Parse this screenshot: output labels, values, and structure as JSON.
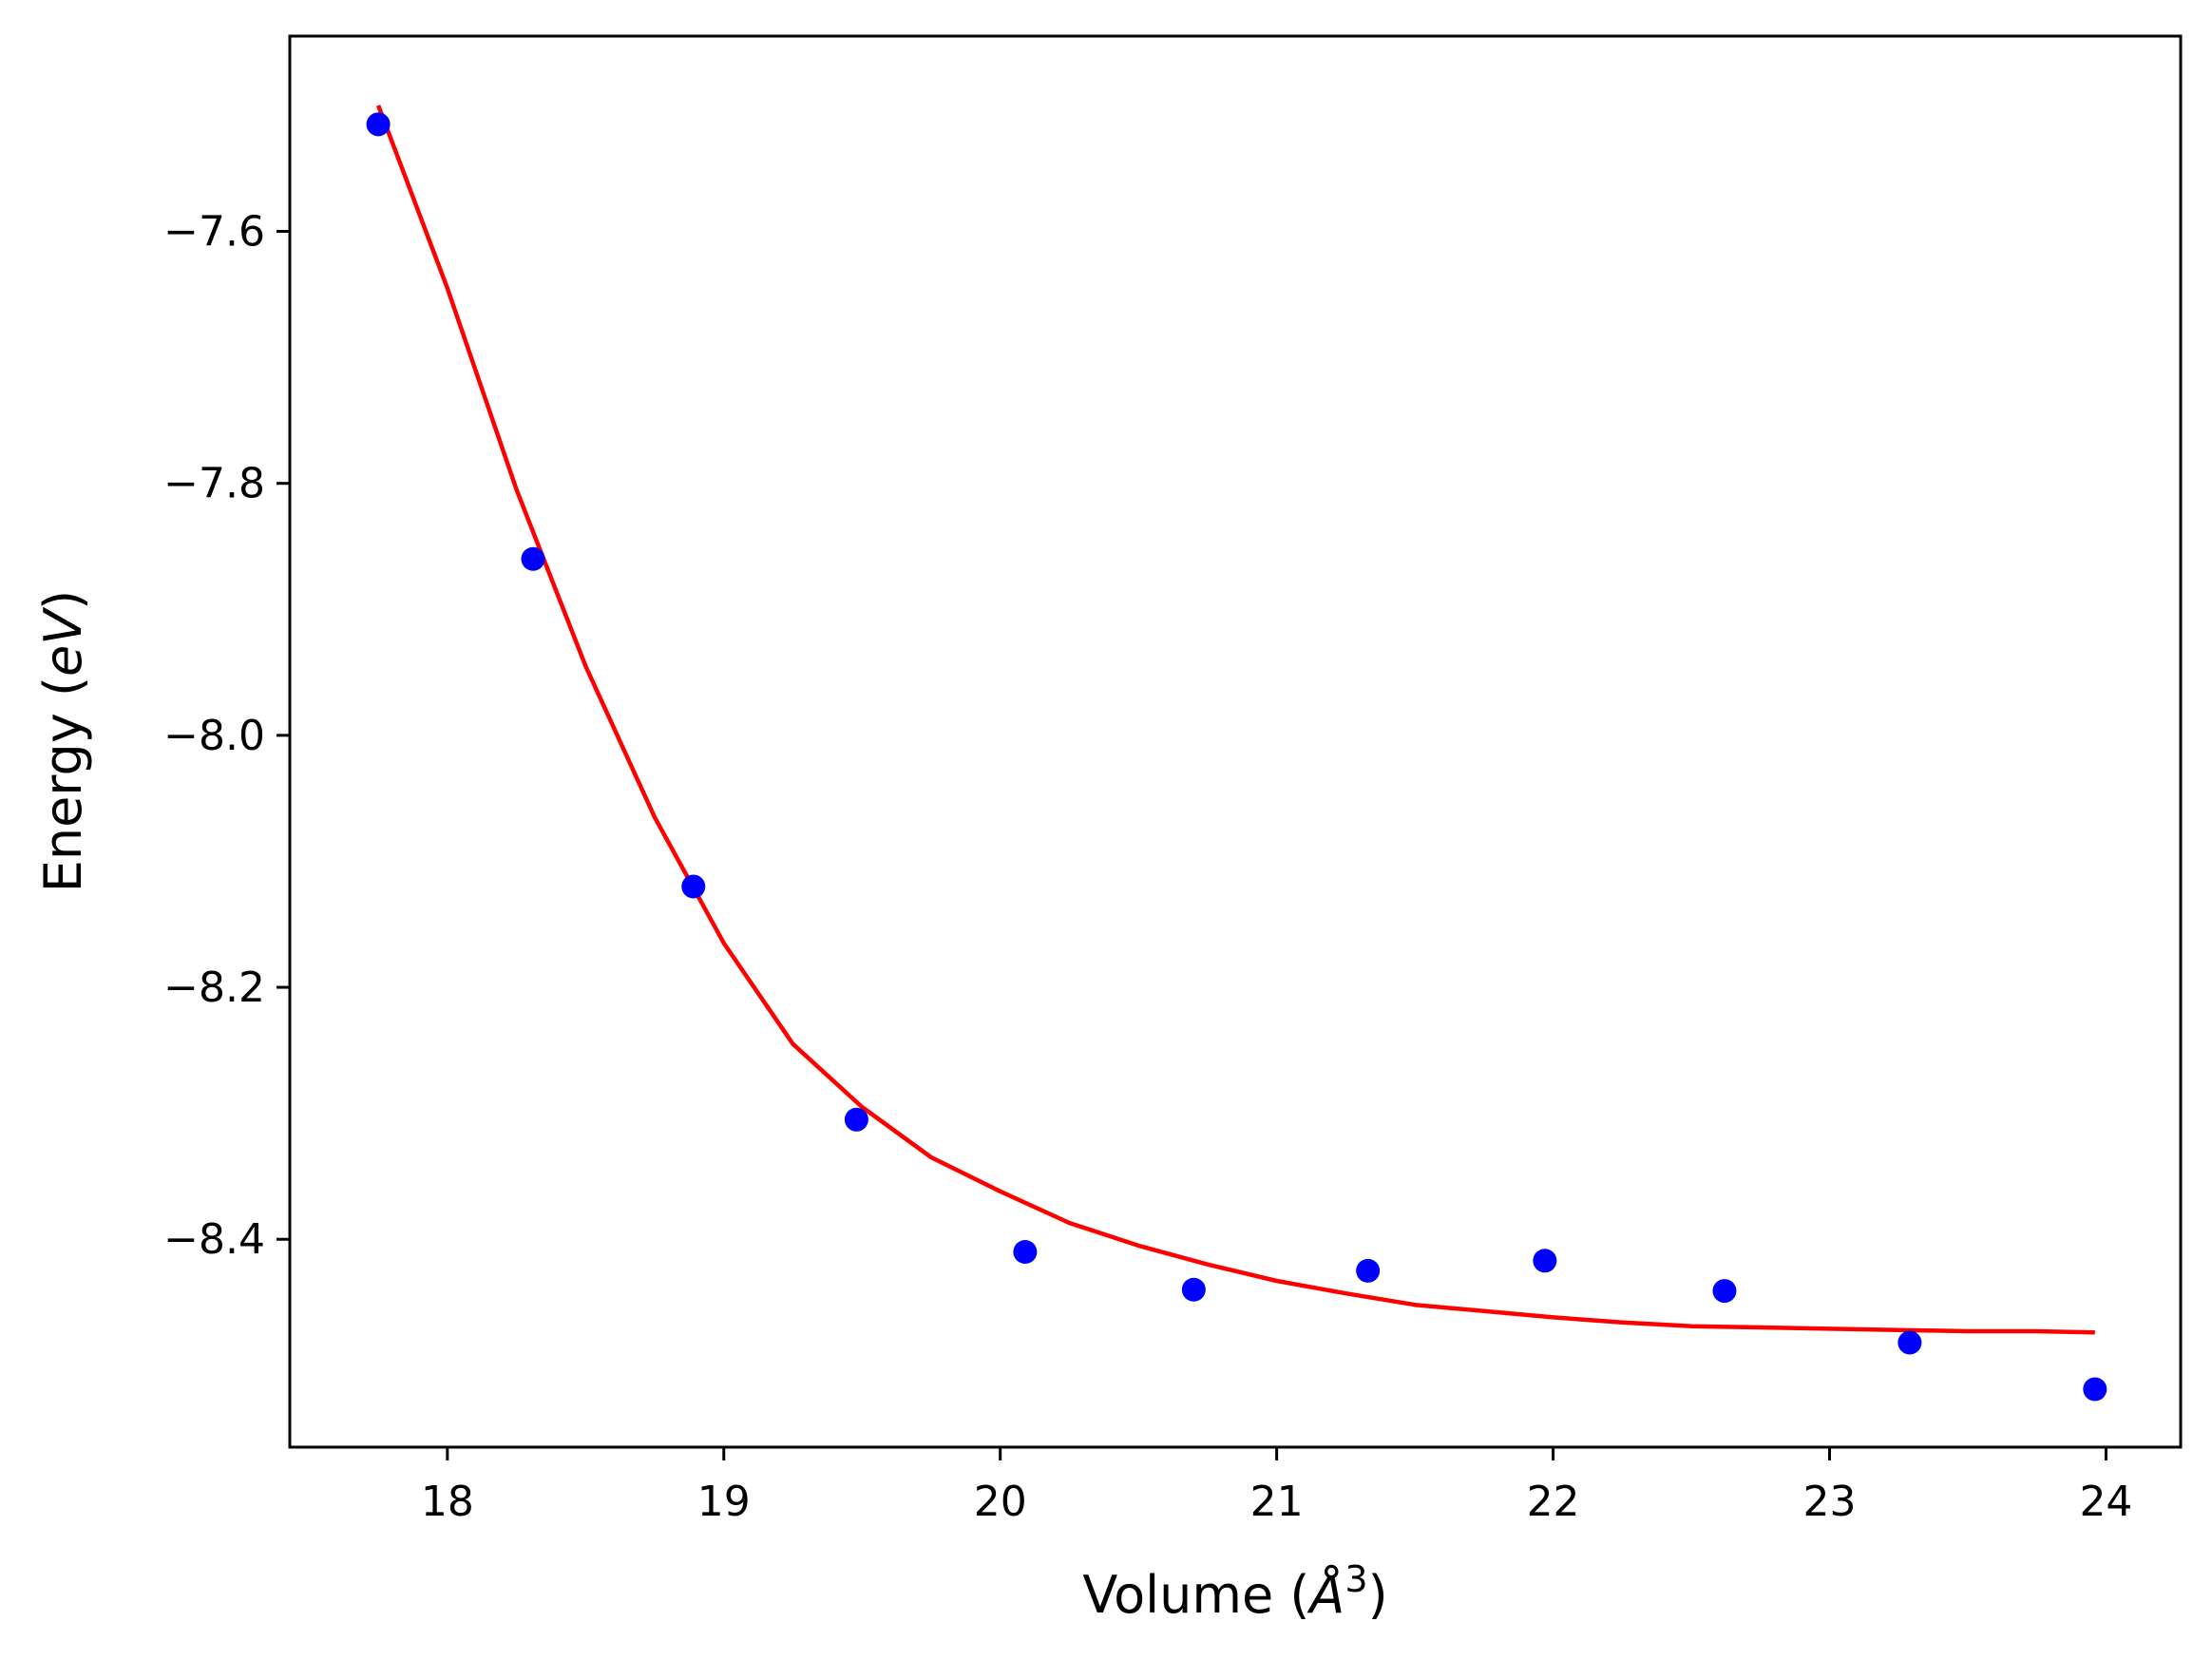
{
  "chart_data": {
    "type": "scatter",
    "title": "",
    "xlabel": {
      "pre": "Volume (",
      "italic": "Å",
      "sup": "3",
      "post": ")"
    },
    "ylabel": {
      "pre": "Energy (",
      "italic": "eV",
      "post": ")"
    },
    "xlim": [
      17.43,
      24.27
    ],
    "ylim": [
      -8.565,
      -7.445
    ],
    "xticks": [
      18,
      19,
      20,
      21,
      22,
      23,
      24
    ],
    "xtick_labels": [
      "18",
      "19",
      "20",
      "21",
      "22",
      "23",
      "24"
    ],
    "yticks": [
      -7.6,
      -7.8,
      -8.0,
      -8.2,
      -8.4
    ],
    "ytick_labels": [
      "−7.6",
      "−7.8",
      "−8.0",
      "−8.2",
      "−8.4"
    ],
    "grid": false,
    "series": [
      {
        "kind": "scatter",
        "color": "#0000ff",
        "x": [
          17.75,
          18.31,
          18.89,
          19.48,
          20.09,
          20.7,
          21.33,
          21.97,
          22.62,
          23.29,
          23.96
        ],
        "y": [
          -7.515,
          -7.86,
          -8.12,
          -8.305,
          -8.41,
          -8.44,
          -8.425,
          -8.417,
          -8.441,
          -8.482,
          -8.519
        ]
      },
      {
        "kind": "line",
        "color": "#ff0000",
        "x": [
          17.75,
          18.0,
          18.25,
          18.5,
          18.75,
          19.0,
          19.25,
          19.5,
          19.75,
          20.0,
          20.25,
          20.5,
          20.75,
          21.0,
          21.25,
          21.5,
          21.75,
          22.0,
          22.25,
          22.5,
          22.75,
          23.0,
          23.25,
          23.5,
          23.75,
          23.96
        ],
        "y": [
          -7.5,
          -7.645,
          -7.805,
          -7.945,
          -8.065,
          -8.165,
          -8.245,
          -8.295,
          -8.335,
          -8.362,
          -8.387,
          -8.405,
          -8.42,
          -8.433,
          -8.443,
          -8.452,
          -8.457,
          -8.462,
          -8.466,
          -8.469,
          -8.47,
          -8.471,
          -8.472,
          -8.473,
          -8.473,
          -8.474
        ]
      }
    ]
  }
}
